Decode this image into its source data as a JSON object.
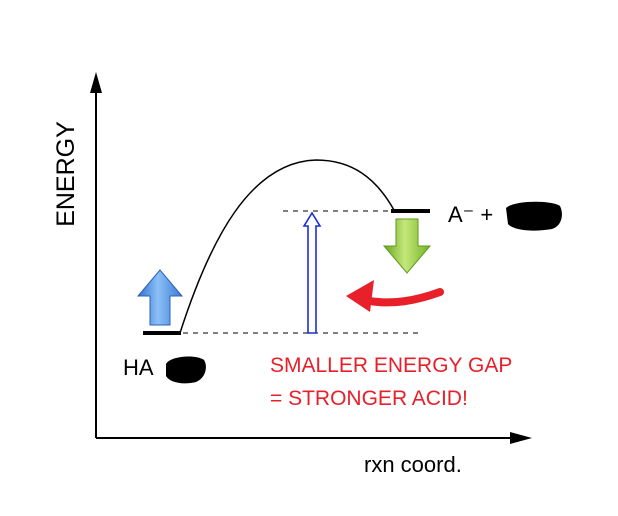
{
  "axes": {
    "y_label": "ENERGY",
    "x_label": "rxn coord."
  },
  "reactant": {
    "label": "HA"
  },
  "product": {
    "label": "A⁻ +"
  },
  "annotation": {
    "line1": "SMALLER ENERGY GAP",
    "line2": "= STRONGER ACID!",
    "color": "#e8202a"
  },
  "colors": {
    "up_arrow": "#3f86e0",
    "down_arrow": "#7fbf2a",
    "gap_arrow": "#1a2fd0",
    "curved_arrow": "#e8202a"
  }
}
